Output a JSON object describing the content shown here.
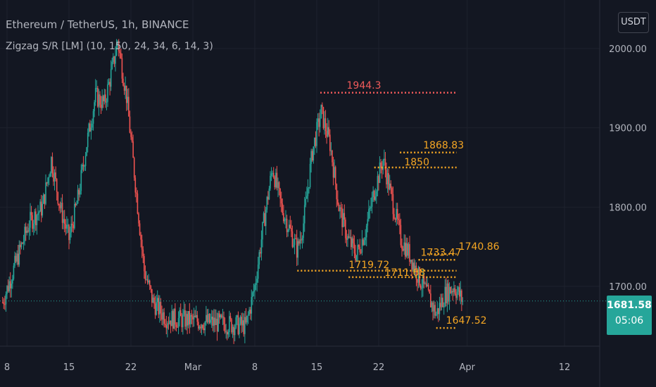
{
  "header": {
    "symbol_title": "Ethereum / TetherUS, 1h, BINANCE",
    "indicator_title": "Zigzag S/R [LM] (10, 150, 24, 34, 6, 14, 3)",
    "currency": "USDT"
  },
  "price_badge": {
    "price": "1681.58",
    "countdown": "05:06"
  },
  "colors": {
    "background": "#131722",
    "grid": "#1e222d",
    "up": "#26a69a",
    "down": "#ef5350",
    "level_orange": "#f5a623",
    "level_red": "#f05a5a",
    "axis_text": "#b2b5be"
  },
  "chart_data": {
    "type": "candlestick",
    "symbol": "Ethereum / TetherUS",
    "interval": "1h",
    "exchange": "BINANCE",
    "ylim": [
      1660,
      2040
    ],
    "y_ticks": [
      {
        "label": "2000.00",
        "value": 2000
      },
      {
        "label": "1900.00",
        "value": 1900
      },
      {
        "label": "1800.00",
        "value": 1800
      },
      {
        "label": "1700.00",
        "value": 1700
      }
    ],
    "x_ticks": [
      {
        "label": "8",
        "day": 8
      },
      {
        "label": "15",
        "day": 15
      },
      {
        "label": "22",
        "day": 22
      },
      {
        "label": "Mar",
        "day": 29
      },
      {
        "label": "8",
        "day": 36
      },
      {
        "label": "15",
        "day": 43
      },
      {
        "label": "22",
        "day": 50
      },
      {
        "label": "Apr",
        "day": 60
      },
      {
        "label": "12",
        "day": 71
      }
    ],
    "current_price": 1681.58,
    "price_path": [
      [
        7.5,
        1680
      ],
      [
        9,
        1730
      ],
      [
        10.5,
        1780
      ],
      [
        12,
        1800
      ],
      [
        13,
        1860
      ],
      [
        14,
        1800
      ],
      [
        15,
        1760
      ],
      [
        16,
        1810
      ],
      [
        17,
        1880
      ],
      [
        18,
        1940
      ],
      [
        19,
        1930
      ],
      [
        20,
        1980
      ],
      [
        20.5,
        2010
      ],
      [
        21.5,
        1940
      ],
      [
        22.5,
        1830
      ],
      [
        23.5,
        1720
      ],
      [
        24.5,
        1680
      ],
      [
        26,
        1660
      ],
      [
        35,
        1650
      ],
      [
        36,
        1700
      ],
      [
        37,
        1780
      ],
      [
        38,
        1850
      ],
      [
        39,
        1800
      ],
      [
        40,
        1770
      ],
      [
        40.8,
        1745
      ],
      [
        41.5,
        1780
      ],
      [
        42.5,
        1870
      ],
      [
        43.5,
        1920
      ],
      [
        44.5,
        1880
      ],
      [
        45.5,
        1800
      ],
      [
        46.5,
        1760
      ],
      [
        47.5,
        1740
      ],
      [
        48.5,
        1770
      ],
      [
        49.5,
        1820
      ],
      [
        50.5,
        1860
      ],
      [
        51.5,
        1810
      ],
      [
        52.5,
        1760
      ],
      [
        53.5,
        1740
      ],
      [
        54.5,
        1712
      ],
      [
        55.5,
        1690
      ],
      [
        56.5,
        1665
      ],
      [
        57.5,
        1690
      ],
      [
        58.5,
        1700
      ],
      [
        59.5,
        1682
      ]
    ],
    "levels": [
      {
        "label": "1944.3",
        "price": 1944.3,
        "start_day": 43.4,
        "end_day": 58.8,
        "color": "#f05a5a"
      },
      {
        "label": "1868.83",
        "price": 1868.83,
        "start_day": 52.4,
        "end_day": 58.8,
        "color": "#f5a623"
      },
      {
        "label": "1850",
        "price": 1850,
        "start_day": 49.5,
        "end_day": 58.8,
        "color": "#f5a623"
      },
      {
        "label": "1740.86",
        "price": 1740.86,
        "start_day": 55.5,
        "end_day": 58.8,
        "color": "#f5a623"
      },
      {
        "label": "1733.47",
        "price": 1733.47,
        "start_day": 54.5,
        "end_day": 58.8,
        "color": "#f5a623"
      },
      {
        "label": "1719.72",
        "price": 1719.72,
        "start_day": 40.8,
        "end_day": 58.8,
        "color": "#f5a623"
      },
      {
        "label": "1711.68",
        "price": 1711.68,
        "start_day": 46.6,
        "end_day": 58.8,
        "color": "#f5a623"
      },
      {
        "label": "1647.52",
        "price": 1647.52,
        "start_day": 56.5,
        "end_day": 58.8,
        "color": "#f5a623"
      }
    ]
  }
}
